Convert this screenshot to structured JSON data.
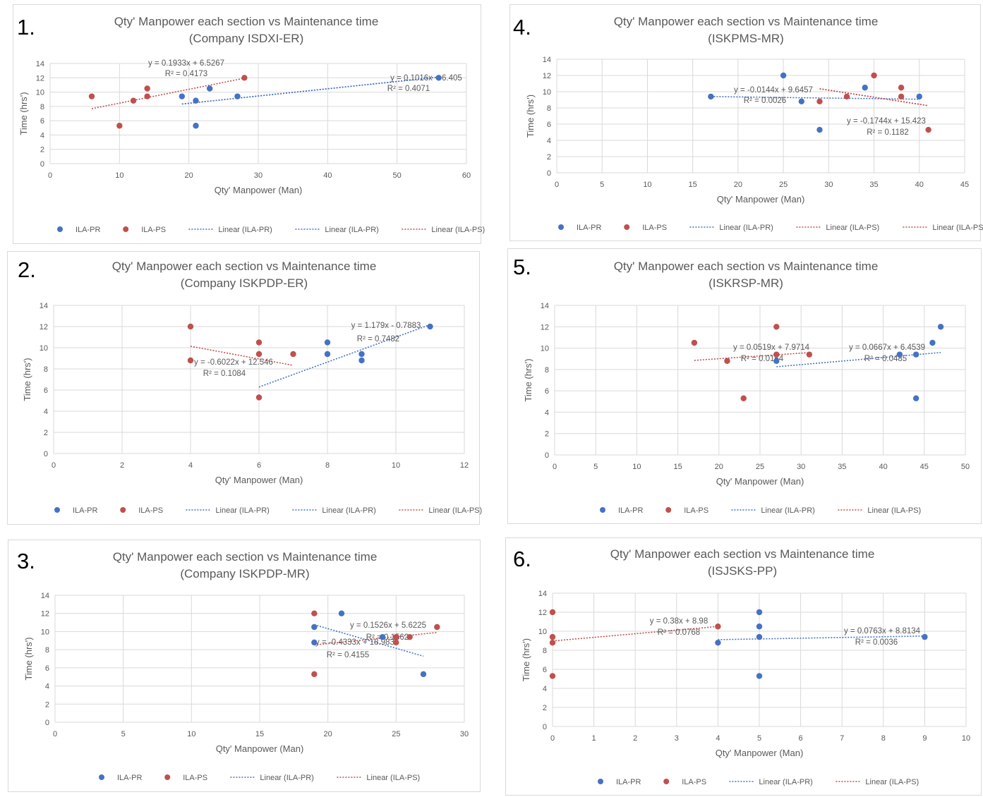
{
  "colors": {
    "pr": "#4472c4",
    "ps": "#c0504d",
    "grid": "#d9d9d9",
    "text": "#595959"
  },
  "legend": {
    "pr": "ILA-PR",
    "ps": "ILA-PS",
    "lin_pr": "Linear (ILA-PR)",
    "lin_ps": "Linear (ILA-PS)"
  },
  "chart_data": [
    {
      "type": "scatter",
      "number": "1.",
      "title": [
        "Qty' Manpower each section vs Maintenance time",
        "(Company ISDXI-ER)"
      ],
      "xlabel": "Qty' Manpower (Man)",
      "ylabel": "Time (hrs')",
      "xlim": [
        0,
        60
      ],
      "xstep": 10,
      "ylim": [
        0,
        14
      ],
      "ystep": 2,
      "series": [
        {
          "name": "ILA-PR",
          "key": "pr",
          "points": [
            [
              19,
              9.4
            ],
            [
              21,
              8.8
            ],
            [
              21,
              5.3
            ],
            [
              23,
              10.5
            ],
            [
              27,
              9.4
            ],
            [
              56,
              12
            ]
          ]
        },
        {
          "name": "ILA-PS",
          "key": "ps",
          "points": [
            [
              6,
              9.4
            ],
            [
              10,
              5.3
            ],
            [
              12,
              8.8
            ],
            [
              14,
              10.5
            ],
            [
              14,
              9.4
            ],
            [
              28,
              12
            ]
          ]
        }
      ],
      "trendlines": [
        {
          "key": "pr",
          "slope": 0.1016,
          "intercept": 6.405,
          "x": [
            19,
            56
          ],
          "eq": "y = 0.1016x + 6.405",
          "r2": "R² = 0.4071"
        },
        {
          "key": "pr",
          "slope": 0.1016,
          "intercept": 6.405,
          "x": [
            19,
            56
          ],
          "eq": "",
          "r2": ""
        },
        {
          "key": "ps",
          "slope": 0.1933,
          "intercept": 6.5267,
          "x": [
            6,
            28
          ],
          "eq": "y = 0.1933x + 6.5267",
          "r2": "R² = 0.4173"
        }
      ],
      "legend_items": [
        "pr",
        "ps",
        "lin_pr",
        "lin_pr",
        "lin_ps"
      ]
    },
    {
      "type": "scatter",
      "number": "2.",
      "title": [
        "Qty' Manpower each section vs Maintenance time",
        "(Company ISKPDP-ER)"
      ],
      "xlabel": "Qty' Manpower (Man)",
      "ylabel": "Time (hrs')",
      "xlim": [
        0,
        12
      ],
      "xstep": 2,
      "ylim": [
        0,
        14
      ],
      "ystep": 2,
      "series": [
        {
          "name": "ILA-PR",
          "key": "pr",
          "points": [
            [
              8,
              10.5
            ],
            [
              8,
              9.4
            ],
            [
              9,
              9.4
            ],
            [
              9,
              8.8
            ],
            [
              11,
              12
            ]
          ]
        },
        {
          "name": "ILA-PS",
          "key": "ps",
          "points": [
            [
              4,
              12
            ],
            [
              4,
              8.8
            ],
            [
              6,
              10.5
            ],
            [
              6,
              9.4
            ],
            [
              6,
              5.3
            ],
            [
              7,
              9.4
            ]
          ]
        }
      ],
      "trendlines": [
        {
          "key": "pr",
          "slope": 1.179,
          "intercept": -0.7883,
          "x": [
            6,
            11
          ],
          "eq": "y = 1.179x - 0.7883",
          "r2": "R² = 0.7482"
        },
        {
          "key": "ps",
          "slope": -0.6022,
          "intercept": 12.546,
          "x": [
            4,
            7
          ],
          "eq": "y = -0.6022x + 12.546",
          "r2": "R² = 0.1084"
        }
      ],
      "legend_items": [
        "pr",
        "ps",
        "lin_pr",
        "lin_pr",
        "lin_ps"
      ]
    },
    {
      "type": "scatter",
      "number": "3.",
      "title": [
        "Qty' Manpower each section vs Maintenance time",
        "(Company ISKPDP-MR)"
      ],
      "xlabel": "Qty' Manpower (Man)",
      "ylabel": "Time (hrs')",
      "xlim": [
        0,
        30
      ],
      "xstep": 5,
      "ylim": [
        0,
        14
      ],
      "ystep": 2,
      "series": [
        {
          "name": "ILA-PR",
          "key": "pr",
          "points": [
            [
              19,
              10.5
            ],
            [
              19,
              8.8
            ],
            [
              21,
              12
            ],
            [
              24,
              9.4
            ],
            [
              27,
              5.3
            ]
          ]
        },
        {
          "name": "ILA-PS",
          "key": "ps",
          "points": [
            [
              19,
              12
            ],
            [
              19,
              5.3
            ],
            [
              25,
              9.4
            ],
            [
              25,
              8.8
            ],
            [
              26,
              9.4
            ],
            [
              28,
              10.5
            ]
          ]
        }
      ],
      "trendlines": [
        {
          "key": "pr",
          "slope": -0.4333,
          "intercept": 18.983,
          "x": [
            19,
            27
          ],
          "eq": "y = -0.4333x + 18.983",
          "r2": "R² = 0.4155"
        },
        {
          "key": "ps",
          "slope": 0.1526,
          "intercept": 5.6225,
          "x": [
            19,
            28
          ],
          "eq": "y = 0.1526x + 5.6225",
          "r2": "R² = 0.1562"
        }
      ],
      "legend_items": [
        "pr",
        "ps",
        "lin_pr",
        "lin_ps"
      ]
    },
    {
      "type": "scatter",
      "number": "4.",
      "title": [
        "Qty' Manpower each section vs Maintenance time",
        "(ISKPMS-MR)"
      ],
      "xlabel": "Qty' Manpower (Man)",
      "ylabel": "Time (hrs')",
      "xlim": [
        0,
        45
      ],
      "xstep": 5,
      "ylim": [
        0,
        14
      ],
      "ystep": 2,
      "series": [
        {
          "name": "ILA-PR",
          "key": "pr",
          "points": [
            [
              17,
              9.4
            ],
            [
              25,
              12
            ],
            [
              27,
              8.8
            ],
            [
              29,
              5.3
            ],
            [
              34,
              10.5
            ],
            [
              40,
              9.4
            ]
          ]
        },
        {
          "name": "ILA-PS",
          "key": "ps",
          "points": [
            [
              29,
              8.8
            ],
            [
              32,
              9.4
            ],
            [
              35,
              12
            ],
            [
              38,
              10.5
            ],
            [
              38,
              9.4
            ],
            [
              41,
              5.3
            ]
          ]
        }
      ],
      "trendlines": [
        {
          "key": "pr",
          "slope": -0.0144,
          "intercept": 9.6457,
          "x": [
            17,
            40
          ],
          "eq": "y = -0.0144x + 9.6457",
          "r2": "R² = 0.0026"
        },
        {
          "key": "ps",
          "slope": -0.1744,
          "intercept": 15.423,
          "x": [
            29,
            41
          ],
          "eq": "y = -0.1744x + 15.423",
          "r2": "R² = 0.1182"
        },
        {
          "key": "ps",
          "slope": -0.1744,
          "intercept": 15.423,
          "x": [
            29,
            41
          ],
          "eq": "",
          "r2": ""
        }
      ],
      "legend_items": [
        "pr",
        "ps",
        "lin_pr",
        "lin_ps",
        "lin_ps"
      ]
    },
    {
      "type": "scatter",
      "number": "5.",
      "title": [
        "Qty' Manpower each section vs Maintenance time",
        "(ISKRSP-MR)"
      ],
      "xlabel": "Qty' Manpower (Man)",
      "ylabel": "Time (hrs')",
      "xlim": [
        0,
        50
      ],
      "xstep": 5,
      "ylim": [
        0,
        14
      ],
      "ystep": 2,
      "series": [
        {
          "name": "ILA-PR",
          "key": "pr",
          "points": [
            [
              27,
              8.8
            ],
            [
              42,
              9.4
            ],
            [
              44,
              9.4
            ],
            [
              44,
              5.3
            ],
            [
              46,
              10.5
            ],
            [
              47,
              12
            ]
          ]
        },
        {
          "name": "ILA-PS",
          "key": "ps",
          "points": [
            [
              17,
              10.5
            ],
            [
              21,
              8.8
            ],
            [
              23,
              5.3
            ],
            [
              27,
              12
            ],
            [
              27,
              9.4
            ],
            [
              31,
              9.4
            ]
          ]
        }
      ],
      "trendlines": [
        {
          "key": "pr",
          "slope": 0.0667,
          "intercept": 6.4539,
          "x": [
            27,
            47
          ],
          "eq": "y = 0.0667x + 6.4539",
          "r2": "R² = 0.0485"
        },
        {
          "key": "ps",
          "slope": 0.0519,
          "intercept": 7.9714,
          "x": [
            17,
            31
          ],
          "eq": "y = 0.0519x + 7.9714",
          "r2": "R² = 0.0154"
        }
      ],
      "legend_items": [
        "pr",
        "ps",
        "lin_pr",
        "lin_ps"
      ]
    },
    {
      "type": "scatter",
      "number": "6.",
      "title": [
        "Qty' Manpower each section vs Maintenance time",
        "(ISJSKS-PP)"
      ],
      "xlabel": "Qty' Manpower (Man)",
      "ylabel": "Time (hrs')",
      "xlim": [
        0,
        10
      ],
      "xstep": 1,
      "ylim": [
        0,
        14
      ],
      "ystep": 2,
      "series": [
        {
          "name": "ILA-PR",
          "key": "pr",
          "points": [
            [
              4,
              8.8
            ],
            [
              5,
              12
            ],
            [
              5,
              10.5
            ],
            [
              5,
              9.4
            ],
            [
              5,
              5.3
            ],
            [
              9,
              9.4
            ]
          ]
        },
        {
          "name": "ILA-PS",
          "key": "ps",
          "points": [
            [
              0,
              12
            ],
            [
              0,
              9.4
            ],
            [
              0,
              8.8
            ],
            [
              0,
              5.3
            ],
            [
              4,
              10.5
            ]
          ]
        }
      ],
      "trendlines": [
        {
          "key": "pr",
          "slope": 0.0763,
          "intercept": 8.8134,
          "x": [
            4,
            9
          ],
          "eq": "y = 0.0763x + 8.8134",
          "r2": "R² = 0.0036"
        },
        {
          "key": "ps",
          "slope": 0.38,
          "intercept": 8.98,
          "x": [
            0,
            4
          ],
          "eq": "y = 0.38x + 8.98",
          "r2": "R² = 0.0768"
        }
      ],
      "legend_items": [
        "pr",
        "ps",
        "lin_pr",
        "lin_ps"
      ]
    }
  ]
}
